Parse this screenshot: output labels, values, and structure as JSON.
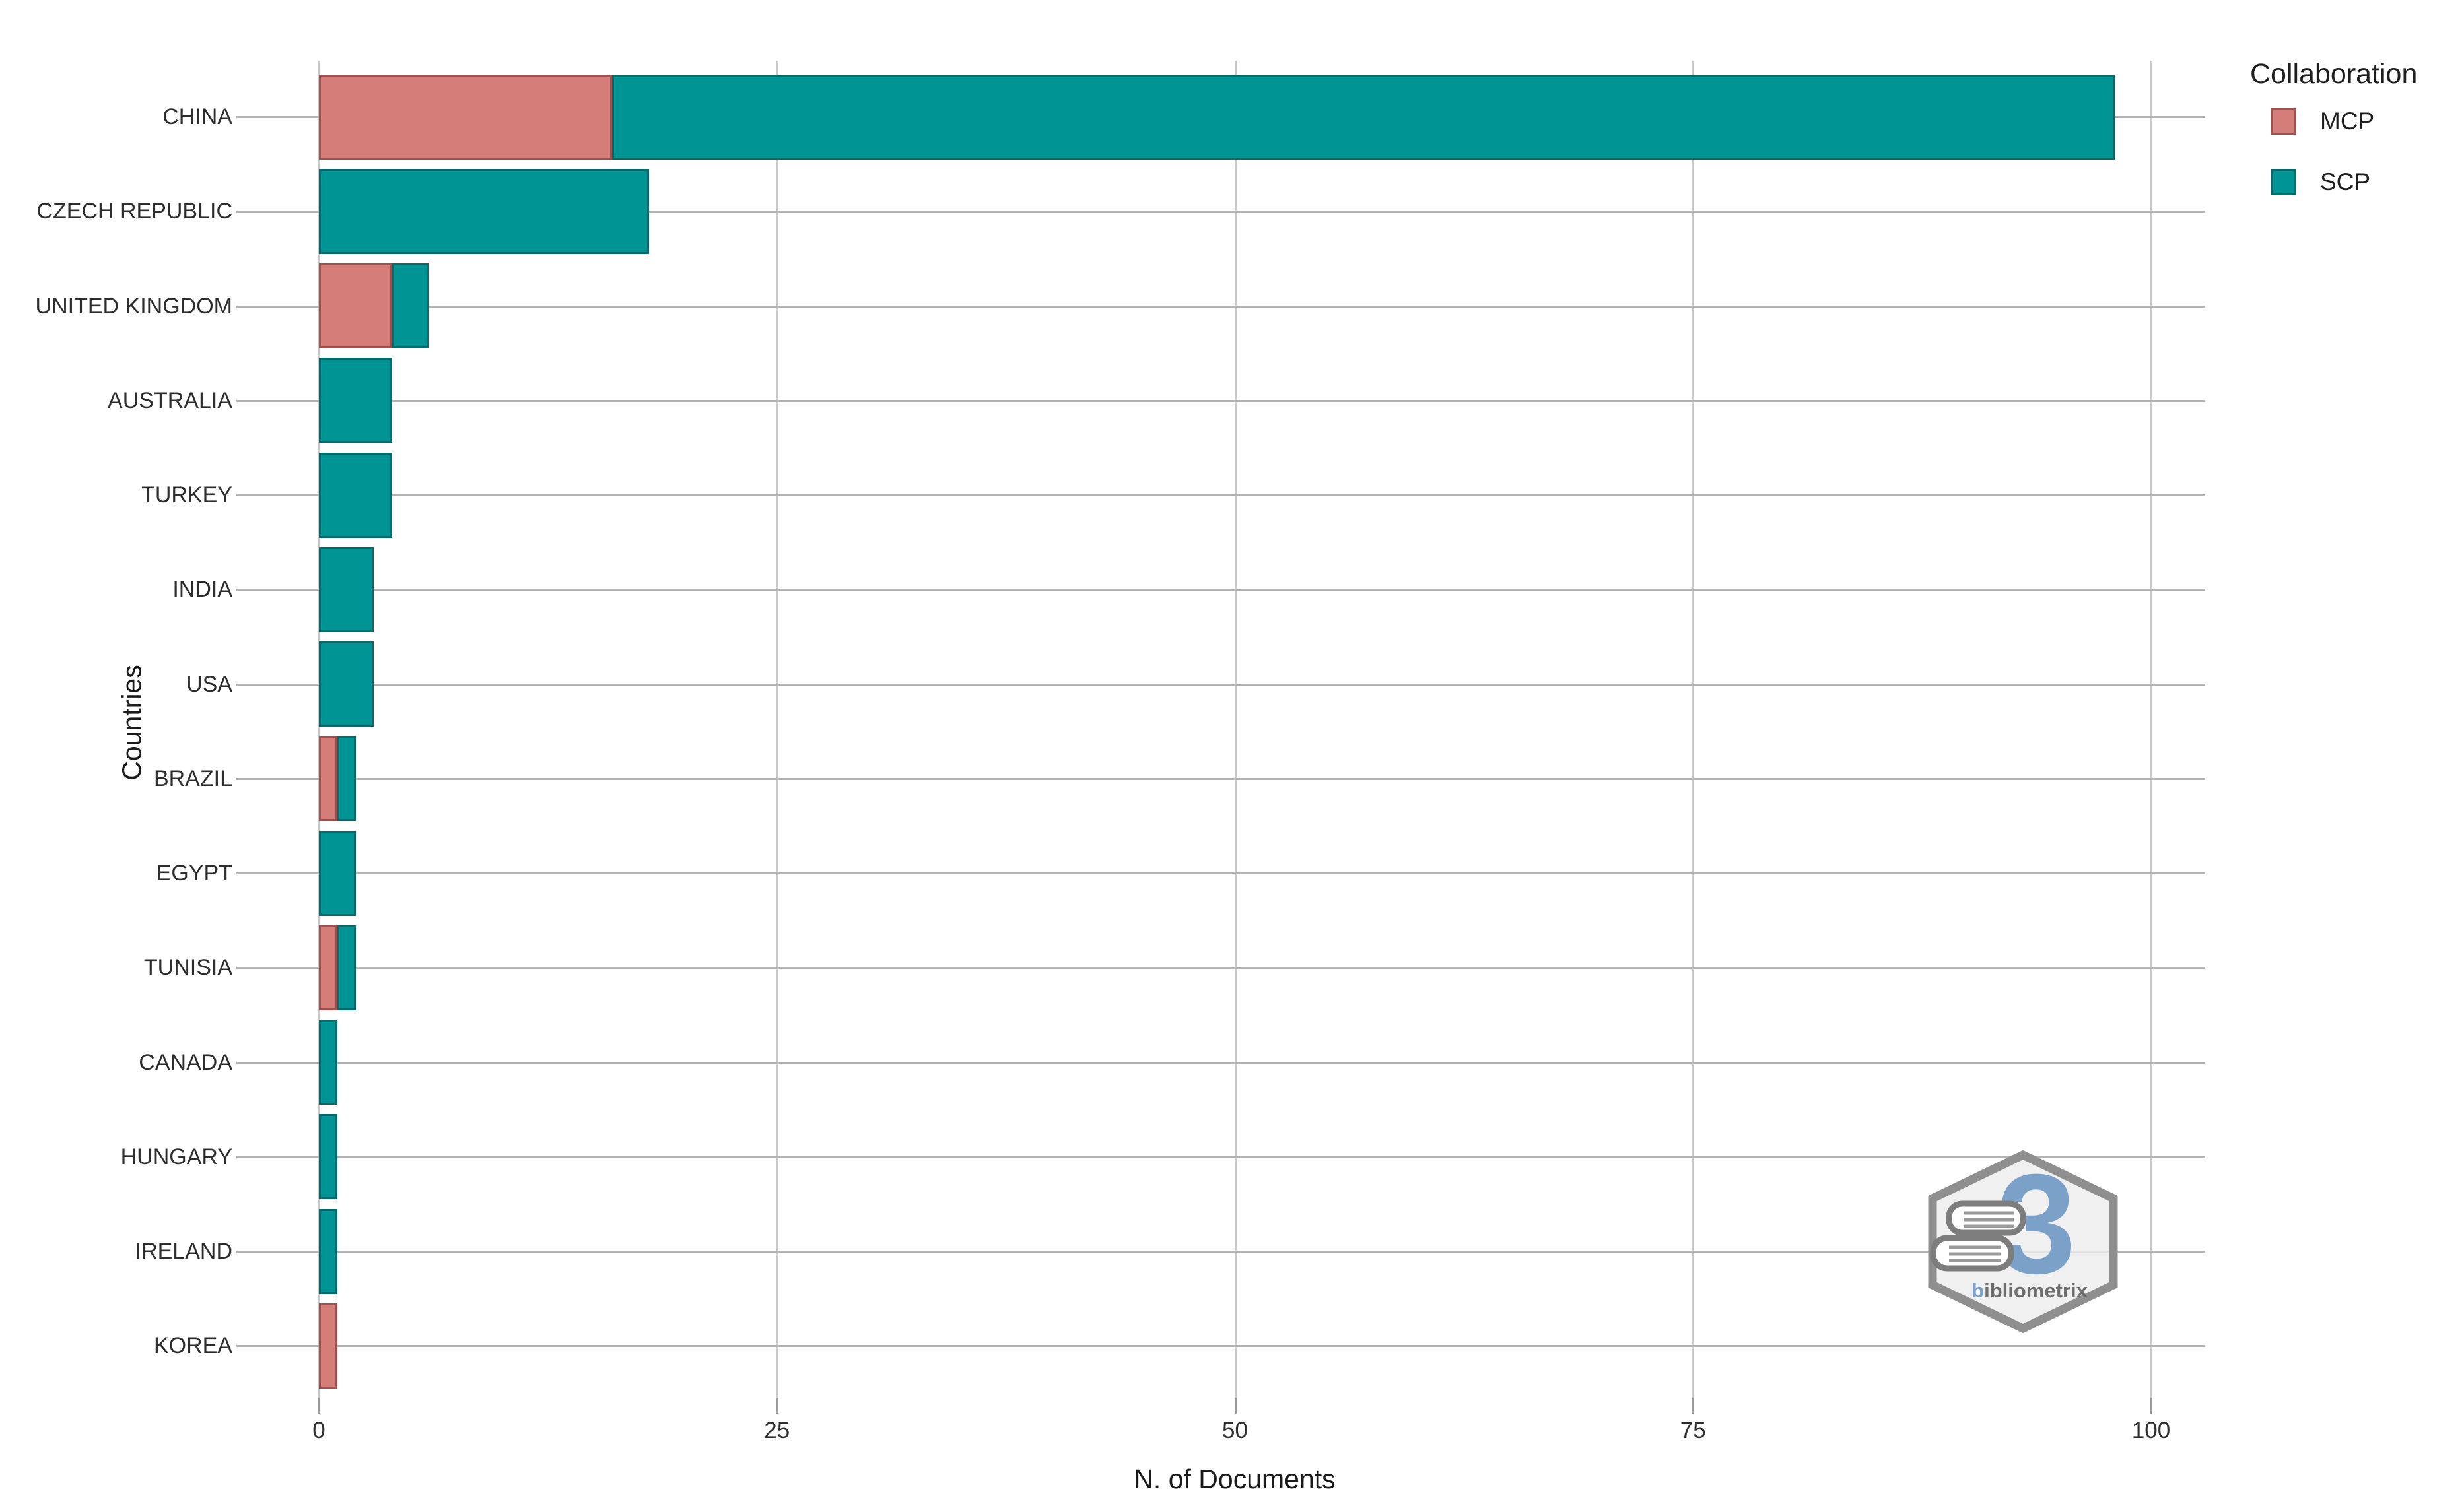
{
  "chart_data": {
    "type": "bar",
    "orientation": "horizontal",
    "stacked": true,
    "title": "",
    "xlabel": "N. of Documents",
    "ylabel": "Countries",
    "categories": [
      "CHINA",
      "CZECH REPUBLIC",
      "UNITED KINGDOM",
      "AUSTRALIA",
      "TURKEY",
      "INDIA",
      "USA",
      "BRAZIL",
      "EGYPT",
      "TUNISIA",
      "CANADA",
      "HUNGARY",
      "IRELAND",
      "KOREA"
    ],
    "series": [
      {
        "name": "MCP",
        "color": "#d57e79",
        "border_color": "#a0504c",
        "values": [
          16,
          0,
          4,
          0,
          0,
          0,
          0,
          1,
          0,
          1,
          0,
          0,
          0,
          1
        ]
      },
      {
        "name": "SCP",
        "color": "#009495",
        "border_color": "#056a6b",
        "values": [
          82,
          18,
          2,
          4,
          4,
          3,
          3,
          1,
          2,
          1,
          1,
          1,
          1,
          0
        ]
      }
    ],
    "totals": [
      98,
      18,
      6,
      4,
      4,
      3,
      3,
      2,
      2,
      2,
      1,
      1,
      1,
      1
    ],
    "x_ticks": [
      0,
      25,
      50,
      75,
      100
    ],
    "xlim": [
      0,
      103
    ],
    "grid": true,
    "legend": {
      "title": "Collaboration",
      "position": "top-right",
      "items": [
        "MCP",
        "SCP"
      ]
    }
  },
  "watermark": {
    "text": "bibliometrix",
    "glyph": "3"
  }
}
